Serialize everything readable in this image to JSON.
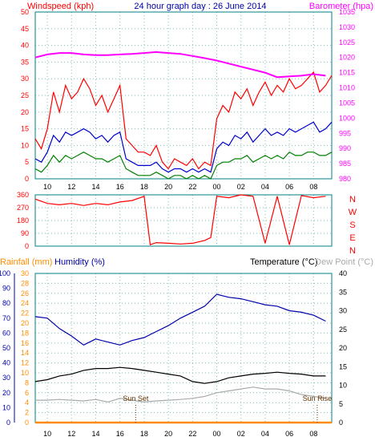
{
  "header": {
    "windspeed_label": "Windspeed (kph)",
    "title": "24 hour graph day : 26 June 2014",
    "barometer_label": "Barometer (hpa)"
  },
  "mid": {
    "direction_letters": [
      "N",
      "W",
      "S",
      "E",
      "N"
    ]
  },
  "bottom_header": {
    "rainfall_label": "Rainfall (mm)",
    "humidity_label": "Humidity (%)",
    "temperature_label": "Temperature (°C)",
    "dewpoint_label": "Dew Point (°C)"
  },
  "annotations": {
    "sunset": "Sun Set",
    "sunrise": "Sun Rise"
  },
  "colors": {
    "gust": "#ff0000",
    "wind_avg": "#0000cc",
    "wind_low": "#008000",
    "barometer": "#ff00ff",
    "direction": "#ff0000",
    "humidity": "#0000aa",
    "temperature": "#000000",
    "dewpoint": "#aaaaaa",
    "rainfall": "#ff8c00",
    "axis_teal": "#008080",
    "grid": "#80c0c0"
  },
  "chart_data": [
    {
      "type": "line",
      "title": "24 hour graph day : 26 June 2014",
      "x_ticks": [
        "10",
        "12",
        "14",
        "16",
        "18",
        "20",
        "22",
        "00",
        "02",
        "04",
        "06",
        "08"
      ],
      "y_left_label": "Windspeed (kph)",
      "y_left_ticks": [
        0,
        5,
        10,
        15,
        20,
        25,
        30,
        35,
        40,
        45,
        50
      ],
      "y_left_range": [
        0,
        50
      ],
      "y_right_label": "Barometer (hpa)",
      "y_right_ticks": [
        980,
        985,
        990,
        995,
        1000,
        1005,
        1010,
        1015,
        1020,
        1025,
        1030,
        1035
      ],
      "y_right_range": [
        980,
        1035
      ],
      "x_range_hours": [
        9,
        33.5
      ],
      "series": [
        {
          "axis": "left",
          "x": [
            9.0,
            9.5,
            10.0,
            10.5,
            11.0,
            11.5,
            12.0,
            12.5,
            13.0,
            13.5,
            14.0,
            14.5,
            15.0,
            15.5,
            16.0,
            16.5,
            17.0,
            17.5,
            18.0,
            18.5,
            19.0,
            19.5,
            20.0,
            20.5,
            21.0,
            21.5,
            22.0,
            22.5,
            23.0,
            23.5,
            24.0,
            24.5,
            25.0,
            25.5,
            26.0,
            26.5,
            27.0,
            27.5,
            28.0,
            28.5,
            29.0,
            29.5,
            30.0,
            30.5,
            31.0,
            31.5,
            32.0,
            32.5,
            33.0,
            33.5
          ],
          "values": [
            12,
            9,
            15,
            26,
            20,
            28,
            24,
            26,
            30,
            27,
            22,
            25,
            20,
            24,
            28,
            12,
            10,
            8,
            8,
            7,
            10,
            5,
            3,
            6,
            5,
            4,
            6,
            3,
            5,
            4,
            18,
            22,
            20,
            26,
            24,
            27,
            22,
            26,
            29,
            25,
            28,
            26,
            30,
            27,
            28,
            30,
            32,
            26,
            28,
            31
          ]
        },
        {
          "axis": "left",
          "x": [
            9.0,
            9.5,
            10.0,
            10.5,
            11.0,
            11.5,
            12.0,
            12.5,
            13.0,
            13.5,
            14.0,
            14.5,
            15.0,
            15.5,
            16.0,
            16.5,
            17.0,
            17.5,
            18.0,
            18.5,
            19.0,
            19.5,
            20.0,
            20.5,
            21.0,
            21.5,
            22.0,
            22.5,
            23.0,
            23.5,
            24.0,
            24.5,
            25.0,
            25.5,
            26.0,
            26.5,
            27.0,
            27.5,
            28.0,
            28.5,
            29.0,
            29.5,
            30.0,
            30.5,
            31.0,
            31.5,
            32.0,
            32.5,
            33.0,
            33.5
          ],
          "values": [
            6,
            5,
            8,
            13,
            11,
            14,
            13,
            14,
            15,
            14,
            12,
            13,
            11,
            13,
            14,
            6,
            5,
            4,
            4,
            4,
            5,
            3,
            2,
            3,
            3,
            2,
            3,
            2,
            3,
            2,
            9,
            11,
            10,
            13,
            12,
            14,
            11,
            13,
            15,
            13,
            14,
            13,
            15,
            14,
            15,
            16,
            17,
            14,
            15,
            17
          ]
        },
        {
          "axis": "left",
          "x": [
            9.0,
            9.5,
            10.0,
            10.5,
            11.0,
            11.5,
            12.0,
            12.5,
            13.0,
            13.5,
            14.0,
            14.5,
            15.0,
            15.5,
            16.0,
            16.5,
            17.0,
            17.5,
            18.0,
            18.5,
            19.0,
            19.5,
            20.0,
            20.5,
            21.0,
            21.5,
            22.0,
            22.5,
            23.0,
            23.5,
            24.0,
            24.5,
            25.0,
            25.5,
            26.0,
            26.5,
            27.0,
            27.5,
            28.0,
            28.5,
            29.0,
            29.5,
            30.0,
            30.5,
            31.0,
            31.5,
            32.0,
            32.5,
            33.0,
            33.5
          ],
          "values": [
            3,
            2,
            4,
            7,
            5,
            7,
            6,
            7,
            8,
            7,
            6,
            6,
            5,
            6,
            7,
            3,
            2,
            1,
            1,
            1,
            2,
            1,
            0,
            1,
            1,
            0,
            1,
            0,
            1,
            0,
            4,
            5,
            5,
            6,
            6,
            7,
            5,
            6,
            7,
            6,
            7,
            6,
            8,
            7,
            7,
            8,
            8,
            7,
            7,
            8
          ]
        },
        {
          "axis": "right",
          "x": [
            9,
            10,
            11,
            12,
            13,
            14,
            15,
            16,
            17,
            18,
            19,
            20,
            21,
            22,
            23,
            24,
            25,
            26,
            27,
            28,
            29,
            30,
            31,
            32,
            33
          ],
          "values": [
            1020.0,
            1021.0,
            1021.5,
            1021.5,
            1021.0,
            1020.8,
            1020.8,
            1021.0,
            1021.2,
            1021.5,
            1021.8,
            1021.5,
            1021.2,
            1020.5,
            1019.8,
            1019.0,
            1018.0,
            1017.0,
            1016.0,
            1015.0,
            1013.5,
            1013.8,
            1014.0,
            1014.5,
            1014.0
          ]
        }
      ]
    },
    {
      "type": "scatter",
      "y_ticks": [
        0,
        90,
        180,
        270,
        360
      ],
      "y_range": [
        0,
        360
      ],
      "x_range_hours": [
        9,
        33.5
      ],
      "series": [
        {
          "x": [
            9.0,
            10.0,
            11.0,
            12.0,
            13.0,
            14.0,
            15.0,
            16.0,
            17.0,
            18.0,
            18.5,
            19.0,
            20.0,
            21.0,
            22.0,
            23.0,
            23.5,
            24.0,
            25.0,
            26.0,
            27.0,
            28.0,
            29.0,
            30.0,
            31.0,
            32.0,
            33.0
          ],
          "values": [
            330,
            300,
            290,
            300,
            285,
            300,
            290,
            310,
            320,
            350,
            10,
            25,
            20,
            15,
            20,
            40,
            60,
            350,
            340,
            360,
            350,
            20,
            350,
            10,
            355,
            340,
            350
          ]
        }
      ]
    },
    {
      "type": "line",
      "x_ticks": [
        "10",
        "12",
        "14",
        "16",
        "18",
        "20",
        "22",
        "00",
        "02",
        "04",
        "06",
        "08"
      ],
      "y_left_label": "Humidity (%)",
      "y_left_ticks": [
        0,
        10,
        20,
        30,
        40,
        50,
        60,
        70,
        80,
        90,
        100
      ],
      "y_left_range": [
        0,
        100
      ],
      "y_rain_label": "Rainfall (mm)",
      "y_rain_ticks": [
        0,
        2,
        4,
        6,
        8,
        10,
        12,
        14,
        16,
        18,
        20,
        22,
        24,
        26,
        28,
        30
      ],
      "y_rain_range": [
        0,
        30
      ],
      "y_right_label": "Temperature (°C)",
      "y_right_ticks": [
        0,
        5,
        10,
        15,
        20,
        25,
        30,
        35,
        40
      ],
      "y_right_range": [
        0,
        40
      ],
      "x_range_hours": [
        9,
        33.5
      ],
      "series": [
        {
          "axis": "left",
          "x": [
            9,
            10,
            11,
            12,
            13,
            14,
            15,
            16,
            17,
            18,
            19,
            20,
            21,
            22,
            23,
            24,
            25,
            26,
            27,
            28,
            29,
            30,
            31,
            32,
            33
          ],
          "values": [
            71,
            70,
            63,
            58,
            52,
            56,
            54,
            52,
            55,
            57,
            61,
            65,
            70,
            74,
            78,
            86,
            84,
            83,
            81,
            79,
            78,
            75,
            74,
            72,
            68
          ]
        },
        {
          "axis": "right",
          "x": [
            9,
            10,
            11,
            12,
            13,
            14,
            15,
            16,
            17,
            18,
            19,
            20,
            21,
            22,
            23,
            24,
            25,
            26,
            27,
            28,
            29,
            30,
            31,
            32,
            33
          ],
          "values": [
            11.0,
            11.5,
            12.5,
            13.0,
            14.0,
            14.5,
            14.5,
            14.8,
            14.5,
            14.0,
            13.5,
            13.0,
            12.5,
            11.0,
            10.5,
            11.0,
            12.0,
            12.5,
            13.0,
            13.2,
            13.5,
            13.2,
            13.0,
            12.5,
            12.5
          ]
        },
        {
          "axis": "right",
          "x": [
            9,
            10,
            11,
            12,
            13,
            14,
            15,
            16,
            17,
            18,
            19,
            20,
            21,
            22,
            23,
            24,
            25,
            26,
            27,
            28,
            29,
            30,
            31,
            32,
            33
          ],
          "values": [
            6.0,
            6.0,
            6.2,
            6.0,
            5.8,
            6.2,
            5.5,
            6.5,
            6.0,
            5.5,
            5.8,
            6.0,
            6.2,
            6.5,
            7.0,
            8.0,
            8.5,
            9.0,
            9.5,
            9.0,
            9.0,
            8.5,
            7.5,
            7.0,
            6.5
          ]
        },
        {
          "axis": "rain",
          "x": [
            9,
            33.5
          ],
          "values": [
            0,
            0
          ]
        }
      ],
      "markers": [
        {
          "label": "Sun Set",
          "x": 17.3
        },
        {
          "label": "Sun Rise",
          "x": 32.3
        }
      ]
    }
  ]
}
